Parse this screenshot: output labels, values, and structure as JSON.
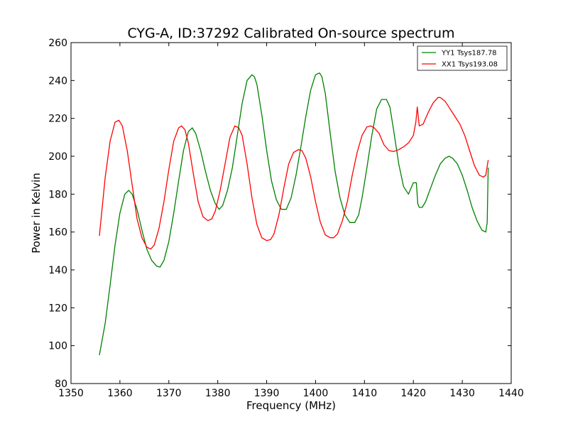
{
  "chart_data": {
    "type": "line",
    "title": "CYG-A, ID:37292 Calibrated On-source spectrum",
    "xlabel": "Frequency (MHz)",
    "ylabel": "Power in Kelvin",
    "xlim": [
      1350,
      1440
    ],
    "ylim": [
      80,
      260
    ],
    "xticks": [
      1350,
      1360,
      1370,
      1380,
      1390,
      1400,
      1410,
      1420,
      1430,
      1440
    ],
    "yticks": [
      80,
      100,
      120,
      140,
      160,
      180,
      200,
      220,
      240,
      260
    ],
    "grid": false,
    "legend": "top-right",
    "series": [
      {
        "name": "YY1 Tsys187.78",
        "color": "#008000",
        "x": [
          1355.8,
          1357.0,
          1358.0,
          1359.0,
          1360.0,
          1361.0,
          1361.8,
          1362.5,
          1363.5,
          1364.5,
          1365.5,
          1366.5,
          1367.5,
          1368.2,
          1369.0,
          1370.0,
          1371.0,
          1372.0,
          1373.0,
          1374.0,
          1374.8,
          1375.5,
          1376.5,
          1377.5,
          1378.5,
          1379.5,
          1380.3,
          1381.0,
          1382.0,
          1383.0,
          1384.0,
          1385.0,
          1386.0,
          1387.0,
          1387.5,
          1388.0,
          1389.0,
          1390.0,
          1391.0,
          1392.0,
          1393.0,
          1394.0,
          1395.0,
          1396.0,
          1397.0,
          1398.0,
          1399.0,
          1400.0,
          1400.8,
          1401.3,
          1402.0,
          1403.0,
          1404.0,
          1405.0,
          1406.0,
          1407.0,
          1408.0,
          1408.8,
          1409.5,
          1410.5,
          1411.5,
          1412.5,
          1413.5,
          1414.5,
          1415.2,
          1416.0,
          1417.0,
          1418.0,
          1419.0,
          1420.0,
          1420.6,
          1420.9,
          1421.2,
          1421.8,
          1422.5,
          1423.5,
          1424.5,
          1425.5,
          1426.5,
          1427.3,
          1428.0,
          1429.0,
          1430.0,
          1431.0,
          1432.0,
          1433.0,
          1434.0,
          1434.8,
          1435.1,
          1435.3
        ],
        "y": [
          95,
          112,
          132,
          153,
          170,
          180,
          182,
          180,
          172,
          161,
          151,
          145,
          142,
          141.5,
          145,
          155,
          170,
          187,
          203,
          213,
          215,
          212,
          203,
          192,
          182,
          175,
          172,
          174,
          182,
          194,
          211,
          228,
          240,
          243,
          242,
          238,
          222,
          203,
          187,
          177,
          172,
          172,
          178,
          190,
          205,
          221,
          235,
          243,
          244,
          242,
          233,
          212,
          192,
          178,
          169,
          165,
          165,
          169,
          178,
          194,
          211,
          225,
          230,
          230,
          226,
          213,
          196,
          184,
          180,
          186,
          186,
          175,
          173,
          173,
          176,
          183,
          190,
          196,
          199,
          200,
          199,
          196,
          190,
          182,
          173,
          166,
          161,
          160,
          165,
          194
        ],
        "label": "YY1 Tsys187.78"
      },
      {
        "name": "XX1 Tsys193.08",
        "color": "#ff0000",
        "x": [
          1355.8,
          1357.0,
          1358.0,
          1359.0,
          1359.8,
          1360.5,
          1361.5,
          1362.5,
          1363.5,
          1364.5,
          1365.5,
          1366.3,
          1367.0,
          1368.0,
          1369.0,
          1370.0,
          1371.0,
          1372.0,
          1372.6,
          1373.3,
          1374.0,
          1375.0,
          1376.0,
          1377.0,
          1378.0,
          1378.8,
          1379.5,
          1380.5,
          1381.5,
          1382.5,
          1383.5,
          1384.3,
          1385.0,
          1386.0,
          1387.0,
          1388.0,
          1389.0,
          1390.0,
          1390.8,
          1391.5,
          1392.5,
          1393.5,
          1394.5,
          1395.5,
          1396.5,
          1397.2,
          1398.0,
          1399.0,
          1400.0,
          1401.0,
          1402.0,
          1403.0,
          1403.7,
          1404.5,
          1405.5,
          1406.5,
          1407.5,
          1408.5,
          1409.5,
          1410.5,
          1411.3,
          1412.0,
          1413.0,
          1414.0,
          1415.0,
          1416.0,
          1417.0,
          1418.0,
          1419.0,
          1420.0,
          1420.5,
          1420.8,
          1421.2,
          1422.0,
          1423.0,
          1424.0,
          1425.0,
          1425.5,
          1426.5,
          1427.5,
          1428.5,
          1429.5,
          1430.5,
          1431.5,
          1432.5,
          1433.5,
          1434.3,
          1434.8,
          1435.3
        ],
        "y": [
          158,
          189,
          208,
          218,
          219,
          216,
          203,
          185,
          167,
          157,
          152,
          151,
          153,
          162,
          176,
          193,
          208,
          215,
          216,
          214,
          207,
          191,
          176,
          168,
          166,
          167,
          171,
          182,
          196,
          210,
          216,
          215,
          211,
          196,
          178,
          164,
          157,
          155.5,
          156,
          159,
          169,
          183,
          196,
          202,
          203.5,
          203,
          199,
          189,
          176,
          165,
          158.5,
          157,
          157,
          159,
          166,
          176,
          190,
          202,
          211,
          215.5,
          216,
          215,
          212,
          206,
          203,
          202.5,
          203.5,
          205,
          207,
          211,
          218,
          226,
          216,
          217,
          223,
          228,
          231,
          231,
          229,
          225,
          221,
          217,
          211,
          203,
          195,
          190,
          189,
          190,
          198
        ],
        "label": "XX1 Tsys193.08"
      }
    ]
  }
}
